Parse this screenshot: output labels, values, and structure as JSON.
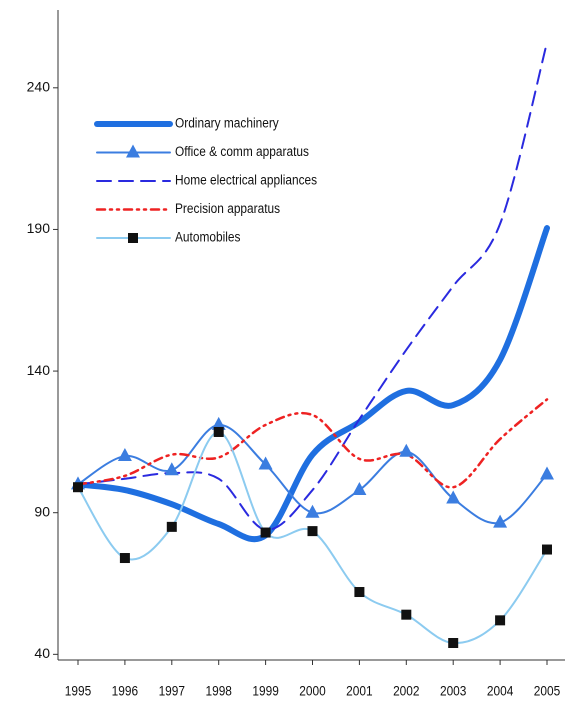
{
  "chart_data": {
    "type": "line",
    "categories": [
      "1995",
      "1996",
      "1997",
      "1998",
      "1999",
      "2000",
      "2001",
      "2002",
      "2003",
      "2004",
      "2005"
    ],
    "series": [
      {
        "name": "Ordinary machinery",
        "color": "#1f6fe0",
        "values": [
          100,
          98,
          93,
          86,
          82,
          110.5,
          122,
          133,
          128,
          144,
          190.5
        ]
      },
      {
        "name": "Office & comm apparatus",
        "color": "#3b7de0",
        "values": [
          100,
          110,
          105,
          121,
          107,
          90,
          98,
          111.5,
          95,
          86.5,
          103.5
        ]
      },
      {
        "name": "Home electrical appliances",
        "color": "#2a2adf",
        "values": [
          100,
          102,
          104,
          102,
          84,
          98,
          123,
          147.5,
          170,
          192,
          256
        ]
      },
      {
        "name": "Precision apparatus",
        "color": "#ee2222",
        "values": [
          100,
          103,
          110.5,
          109.5,
          121,
          124.5,
          109,
          110.5,
          99,
          116,
          130
        ]
      },
      {
        "name": "Automobiles",
        "color": "#8ccbf0",
        "values": [
          99,
          74,
          85,
          118.5,
          83,
          83.5,
          62,
          54,
          44,
          52,
          77
        ]
      }
    ],
    "ylim": [
      38,
      271
    ],
    "yticks": [
      40,
      90,
      140,
      190,
      240
    ]
  }
}
